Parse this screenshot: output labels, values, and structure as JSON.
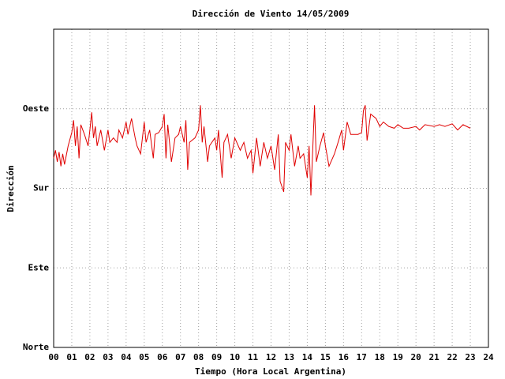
{
  "chart_data": {
    "type": "line",
    "title": "Dirección de Viento 14/05/2009",
    "xlabel": "Tiempo (Hora Local Argentina)",
    "ylabel": "Dirección",
    "xlim": [
      0,
      24
    ],
    "xticks": [
      {
        "value": 0,
        "label": "00"
      },
      {
        "value": 1,
        "label": "01"
      },
      {
        "value": 2,
        "label": "02"
      },
      {
        "value": 3,
        "label": "03"
      },
      {
        "value": 4,
        "label": "04"
      },
      {
        "value": 5,
        "label": "05"
      },
      {
        "value": 6,
        "label": "06"
      },
      {
        "value": 7,
        "label": "07"
      },
      {
        "value": 8,
        "label": "08"
      },
      {
        "value": 9,
        "label": "09"
      },
      10,
      11,
      12,
      13,
      14,
      15,
      16,
      17,
      18,
      19,
      20,
      21,
      22,
      23,
      24
    ],
    "ylim": [
      0,
      360
    ],
    "yticks": [
      {
        "value": 0,
        "label": "Norte"
      },
      {
        "value": 90,
        "label": "Este"
      },
      {
        "value": 180,
        "label": "Sur"
      },
      {
        "value": 270,
        "label": "Oeste"
      }
    ],
    "grid": true,
    "series": [
      {
        "color": "#e00000",
        "x": [
          0.0,
          0.1,
          0.2,
          0.3,
          0.4,
          0.5,
          0.6,
          0.8,
          1.0,
          1.1,
          1.2,
          1.3,
          1.4,
          1.5,
          1.7,
          1.9,
          2.0,
          2.1,
          2.2,
          2.3,
          2.4,
          2.6,
          2.8,
          3.0,
          3.1,
          3.3,
          3.5,
          3.6,
          3.8,
          4.0,
          4.1,
          4.3,
          4.5,
          4.6,
          4.8,
          5.0,
          5.1,
          5.3,
          5.5,
          5.6,
          5.8,
          6.0,
          6.1,
          6.2,
          6.3,
          6.5,
          6.7,
          6.9,
          7.0,
          7.2,
          7.3,
          7.4,
          7.5,
          7.8,
          8.0,
          8.1,
          8.2,
          8.3,
          8.5,
          8.6,
          8.9,
          9.0,
          9.1,
          9.3,
          9.4,
          9.6,
          9.8,
          10.0,
          10.3,
          10.5,
          10.7,
          10.9,
          11.0,
          11.2,
          11.4,
          11.6,
          11.8,
          12.0,
          12.2,
          12.4,
          12.5,
          12.7,
          12.8,
          13.0,
          13.1,
          13.3,
          13.5,
          13.6,
          13.8,
          14.0,
          14.1,
          14.2,
          14.4,
          14.5,
          14.7,
          14.9,
          15.0,
          15.2,
          15.5,
          15.7,
          15.9,
          16.0,
          16.2,
          16.4,
          16.8,
          17.0,
          17.1,
          17.2,
          17.3,
          17.5,
          17.8,
          18.0,
          18.2,
          18.5,
          18.8,
          19.0,
          19.3,
          19.6,
          20.0,
          20.2,
          20.5,
          21.0,
          21.3,
          21.6,
          22.0,
          22.3,
          22.6,
          23.0
        ],
        "values": [
          214,
          223,
          210,
          221,
          205,
          219,
          207,
          228,
          243,
          257,
          228,
          250,
          214,
          252,
          241,
          228,
          246,
          266,
          237,
          250,
          228,
          246,
          223,
          246,
          232,
          237,
          232,
          246,
          237,
          255,
          241,
          259,
          237,
          228,
          219,
          255,
          232,
          246,
          214,
          241,
          243,
          250,
          264,
          214,
          252,
          210,
          237,
          241,
          250,
          232,
          257,
          201,
          232,
          237,
          246,
          274,
          232,
          250,
          210,
          228,
          237,
          223,
          246,
          192,
          232,
          241,
          214,
          237,
          223,
          232,
          214,
          223,
          197,
          237,
          205,
          232,
          214,
          228,
          201,
          241,
          188,
          176,
          232,
          223,
          241,
          205,
          228,
          214,
          219,
          192,
          228,
          172,
          274,
          210,
          228,
          243,
          228,
          205,
          219,
          232,
          246,
          223,
          255,
          241,
          241,
          243,
          268,
          274,
          234,
          264,
          259,
          250,
          255,
          250,
          248,
          252,
          248,
          248,
          250,
          246,
          252,
          250,
          252,
          250,
          253,
          246,
          252,
          248
        ]
      }
    ]
  }
}
